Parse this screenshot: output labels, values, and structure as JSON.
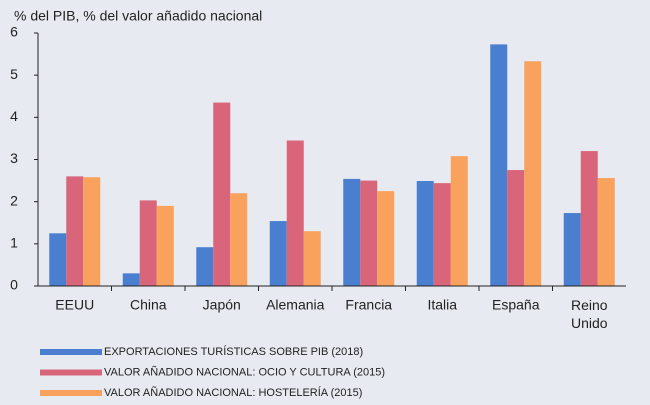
{
  "chart_data": {
    "type": "bar",
    "ylabel": "% del PIB, % del valor añadido nacional",
    "categories": [
      "EEUU",
      "China",
      "Japón",
      "Alemania",
      "Francia",
      "Italia",
      "España",
      "Reino Unido"
    ],
    "series": [
      {
        "name": "EXPORTACIONES TURÍSTICAS SOBRE PIB (2018)",
        "color": "#4a7fd0",
        "values": [
          1.25,
          0.3,
          0.92,
          1.54,
          2.54,
          2.49,
          5.73,
          1.73
        ]
      },
      {
        "name": "VALOR AÑADIDO NACIONAL: OCIO Y CULTURA (2015)",
        "color": "#d9657a",
        "values": [
          2.6,
          2.03,
          4.35,
          3.45,
          2.5,
          2.44,
          2.75,
          3.2
        ]
      },
      {
        "name": "VALOR AÑADIDO NACIONAL: HOSTELERÍA (2015)",
        "color": "#f9a25e",
        "values": [
          2.58,
          1.9,
          2.2,
          1.3,
          2.25,
          3.08,
          5.33,
          2.56
        ]
      }
    ],
    "ylim": [
      0,
      6
    ],
    "yticks": [
      0,
      1,
      2,
      3,
      4,
      5,
      6
    ]
  }
}
